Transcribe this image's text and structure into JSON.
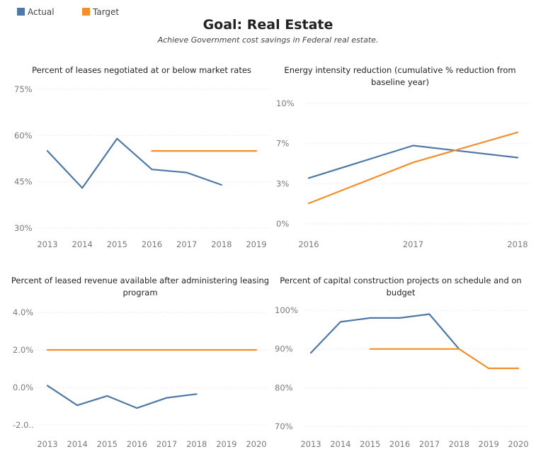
{
  "legend": [
    {
      "label": "Actual",
      "color": "#4e79a7"
    },
    {
      "label": "Target",
      "color": "#f28e2b"
    }
  ],
  "title": "Goal: Real Estate",
  "subtitle": "Achieve Government cost savings in Federal real estate.",
  "chart_data": [
    {
      "type": "line",
      "title": "Percent of leases negotiated at or below market rates",
      "x": [
        2013,
        2014,
        2015,
        2016,
        2017,
        2018,
        2019
      ],
      "ylim": [
        30,
        75
      ],
      "yticks": [
        "75%",
        "60%",
        "45%",
        "30%"
      ],
      "ytick_values": [
        75,
        60,
        45,
        30
      ],
      "grid": true,
      "series": [
        {
          "name": "Actual",
          "color": "#4e79a7",
          "x": [
            2013,
            2014,
            2015,
            2016,
            2017,
            2018
          ],
          "values": [
            55,
            43,
            59,
            49,
            48,
            44
          ]
        },
        {
          "name": "Target",
          "color": "#f28e2b",
          "x": [
            2016,
            2017,
            2018,
            2019
          ],
          "values": [
            55,
            55,
            55,
            55
          ]
        }
      ]
    },
    {
      "type": "line",
      "title": "Energy intensity reduction (cumulative % reduction from baseline year)",
      "x": [
        2016,
        2017,
        2018
      ],
      "ylim": [
        0,
        10
      ],
      "yticks": [
        "10%",
        "7%",
        "3%",
        "0%"
      ],
      "ytick_values": [
        10,
        6.67,
        3.33,
        0
      ],
      "grid": true,
      "series": [
        {
          "name": "Actual",
          "color": "#4e79a7",
          "x": [
            2016,
            2017,
            2018
          ],
          "values": [
            3.8,
            6.5,
            5.5
          ]
        },
        {
          "name": "Target",
          "color": "#f28e2b",
          "x": [
            2016,
            2017,
            2018
          ],
          "values": [
            1.7,
            5.1,
            7.6
          ]
        }
      ]
    },
    {
      "type": "line",
      "title": "Percent of leased revenue available after administering leasing program",
      "x": [
        2013,
        2014,
        2015,
        2016,
        2017,
        2018,
        2019,
        2020
      ],
      "ylim": [
        -2,
        4
      ],
      "yticks": [
        "4.0%",
        "2.0%",
        "0.0%",
        "-2.0.."
      ],
      "ytick_values": [
        4,
        2,
        0,
        -2
      ],
      "grid": true,
      "series": [
        {
          "name": "Actual",
          "color": "#4e79a7",
          "x": [
            2013,
            2014,
            2015,
            2016,
            2017,
            2018
          ],
          "values": [
            0.1,
            -0.95,
            -0.45,
            -1.1,
            -0.55,
            -0.35
          ]
        },
        {
          "name": "Target",
          "color": "#f28e2b",
          "x": [
            2013,
            2014,
            2015,
            2016,
            2017,
            2018,
            2019,
            2020
          ],
          "values": [
            2,
            2,
            2,
            2,
            2,
            2,
            2,
            2
          ]
        }
      ]
    },
    {
      "type": "line",
      "title": "Percent of capital construction projects on schedule and on budget",
      "x": [
        2013,
        2014,
        2015,
        2016,
        2017,
        2018,
        2019,
        2020
      ],
      "ylim": [
        70,
        100
      ],
      "yticks": [
        "100%",
        "90%",
        "80%",
        "70%"
      ],
      "ytick_values": [
        100,
        90,
        80,
        70
      ],
      "grid": true,
      "series": [
        {
          "name": "Actual",
          "color": "#4e79a7",
          "x": [
            2013,
            2014,
            2015,
            2016,
            2017,
            2018
          ],
          "values": [
            89,
            97,
            98,
            98,
            99,
            90
          ]
        },
        {
          "name": "Target",
          "color": "#f28e2b",
          "x": [
            2015,
            2016,
            2017,
            2018,
            2019,
            2020
          ],
          "values": [
            90,
            90,
            90,
            90,
            85,
            85
          ]
        }
      ]
    }
  ]
}
